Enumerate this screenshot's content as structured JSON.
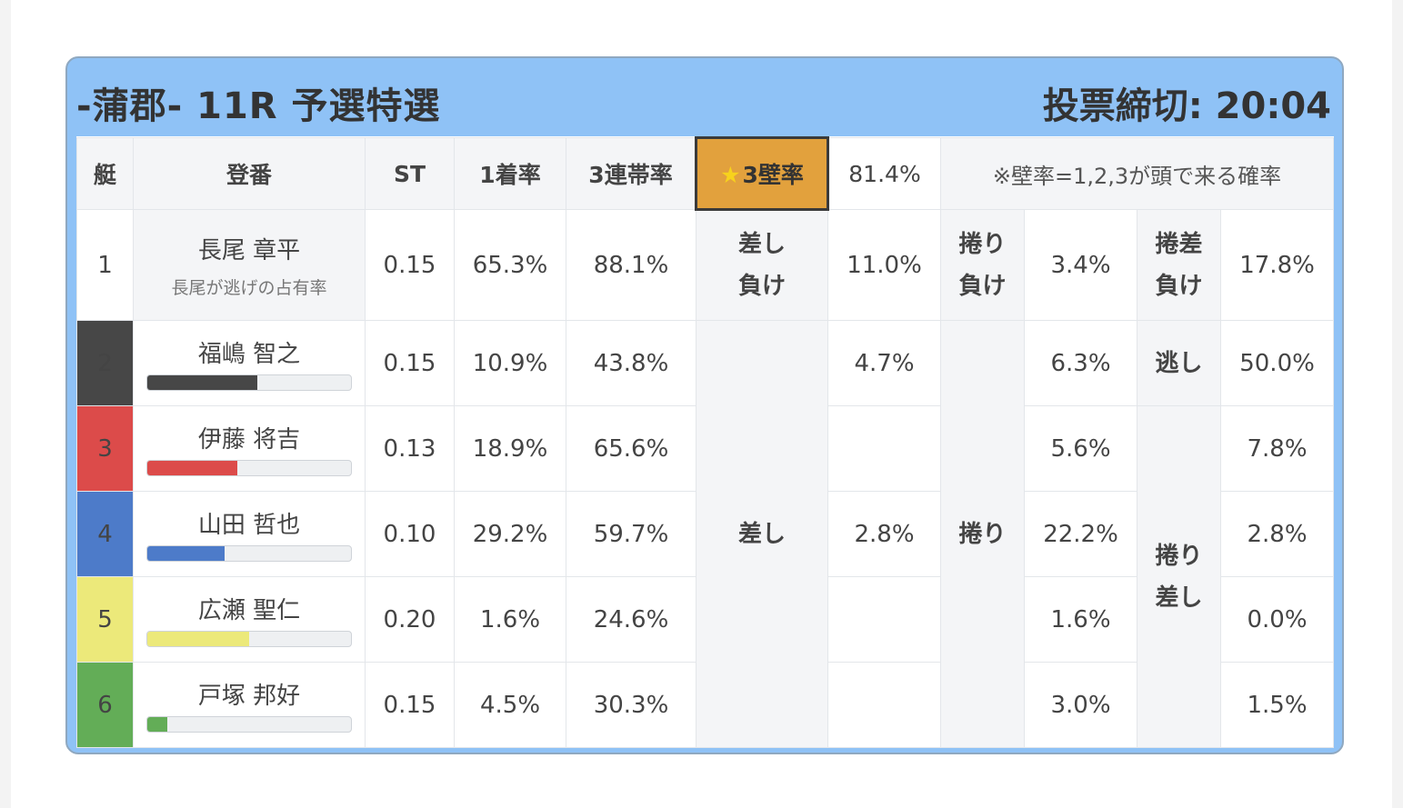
{
  "header": {
    "race_title": "-蒲郡- 11R 予選特選",
    "deadline": "投票締切: 20:04"
  },
  "columns": {
    "lane": "艇",
    "racer": "登番",
    "st": "ST",
    "win_rate": "1着率",
    "top3_rate": "3連帯率",
    "kabe_label": "3壁率",
    "kabe_value": "81.4%",
    "note": "※壁率=1,2,3が頭で来る確率"
  },
  "rows": [
    {
      "lane": "1",
      "name": "長尾 章平",
      "sub": "長尾が逃げの占有率",
      "st": "0.15",
      "win": "65.3%",
      "top3": "88.1%",
      "c1": "11.0%",
      "c2": "3.4%",
      "c3": "17.8%"
    },
    {
      "lane": "2",
      "name": "福嶋 智之",
      "bar": 0.54,
      "bar_color": "#474747",
      "st": "0.15",
      "win": "10.9%",
      "top3": "43.8%",
      "c1": "4.7%",
      "c2": "6.3%",
      "c3": "50.0%"
    },
    {
      "lane": "3",
      "name": "伊藤 将吉",
      "bar": 0.44,
      "bar_color": "#dc4b4a",
      "st": "0.13",
      "win": "18.9%",
      "top3": "65.6%",
      "c1": "",
      "c2": "5.6%",
      "c3": "7.8%"
    },
    {
      "lane": "4",
      "name": "山田 哲也",
      "bar": 0.38,
      "bar_color": "#4d7bc9",
      "st": "0.10",
      "win": "29.2%",
      "top3": "59.7%",
      "c1": "2.8%",
      "c2": "22.2%",
      "c3": "2.8%"
    },
    {
      "lane": "5",
      "name": "広瀬 聖仁",
      "bar": 0.5,
      "bar_color": "#ece97a",
      "st": "0.20",
      "win": "1.6%",
      "top3": "24.6%",
      "c1": "",
      "c2": "1.6%",
      "c3": "0.0%"
    },
    {
      "lane": "6",
      "name": "戸塚 邦好",
      "bar": 0.1,
      "bar_color": "#63ad57",
      "st": "0.15",
      "win": "4.5%",
      "top3": "30.3%",
      "c1": "",
      "c2": "3.0%",
      "c3": "1.5%"
    }
  ],
  "patterns": {
    "sashi_make_1": "差し",
    "sashi_make_2": "負け",
    "makuri_make_1": "捲り",
    "makuri_make_2": "負け",
    "makurizashi_make_1": "捲差",
    "makurizashi_make_2": "負け",
    "nige": "逃し",
    "sashi": "差し",
    "makuri": "捲り",
    "makurizashi_1": "捲り",
    "makurizashi_2": "差し"
  },
  "colors": {
    "header_bg": "#8fc2f6",
    "kabe_highlight": "#e2a13d",
    "lane1": "#ffffff",
    "lane2": "#474747",
    "lane3": "#dc4b4a",
    "lane4": "#4d7bc9",
    "lane5": "#ece97a",
    "lane6": "#63ad57"
  }
}
